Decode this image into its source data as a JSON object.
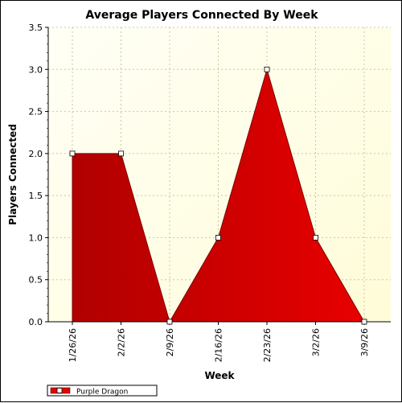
{
  "chart_data": {
    "type": "area",
    "title": "Average Players Connected By Week",
    "xlabel": "Week",
    "ylabel": "Players Connected",
    "categories": [
      "1/26/26",
      "2/2/26",
      "2/9/26",
      "2/16/26",
      "2/23/26",
      "3/2/26",
      "3/9/26"
    ],
    "series": [
      {
        "name": "Purple Dragon",
        "values": [
          2,
          2,
          0,
          1,
          3,
          1,
          0
        ]
      }
    ],
    "ylim": [
      0,
      3.5
    ],
    "yticks": [
      "0.0",
      "0.5",
      "1.0",
      "1.5",
      "2.0",
      "2.5",
      "3.0",
      "3.5"
    ],
    "grid": true,
    "legend_position": "bottom-left"
  },
  "colors": {
    "series_fill": "#e80000",
    "series_fill_dark": "#b00000",
    "plot_bg_left": "#fffff6",
    "plot_bg_right": "#fffcd8",
    "grid": "#c8c8a0"
  }
}
